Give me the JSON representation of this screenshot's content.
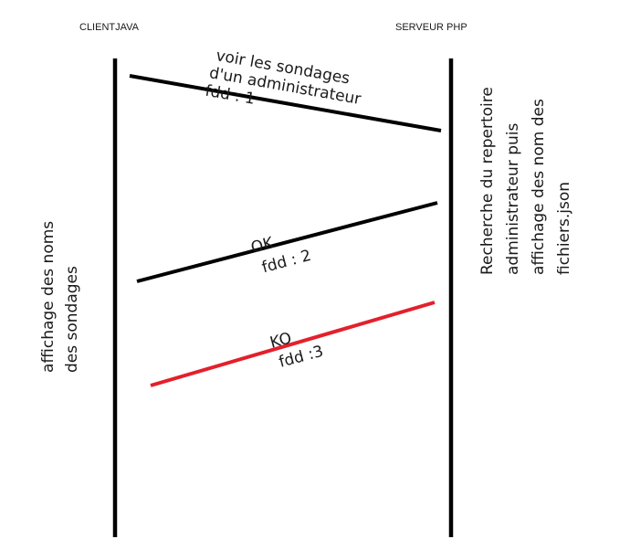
{
  "actors": {
    "client": "CLIENTJAVA",
    "server": "SERVEUR PHP"
  },
  "messages": [
    {
      "lines": [
        "voir les sondages",
        "d'un administrateur",
        "fdd : 1"
      ],
      "color": "#000000"
    },
    {
      "lines": [
        "OK",
        "fdd : 2"
      ],
      "color": "#000000"
    },
    {
      "lines": [
        "KO",
        "fdd :3"
      ],
      "color": "#e3202b"
    }
  ],
  "notes": {
    "client": [
      "affichage des noms",
      "des sondages"
    ],
    "server": [
      "Recherche du repertoire",
      "administrateur puis",
      "affichage des nom des",
      "fichiers.json"
    ]
  }
}
